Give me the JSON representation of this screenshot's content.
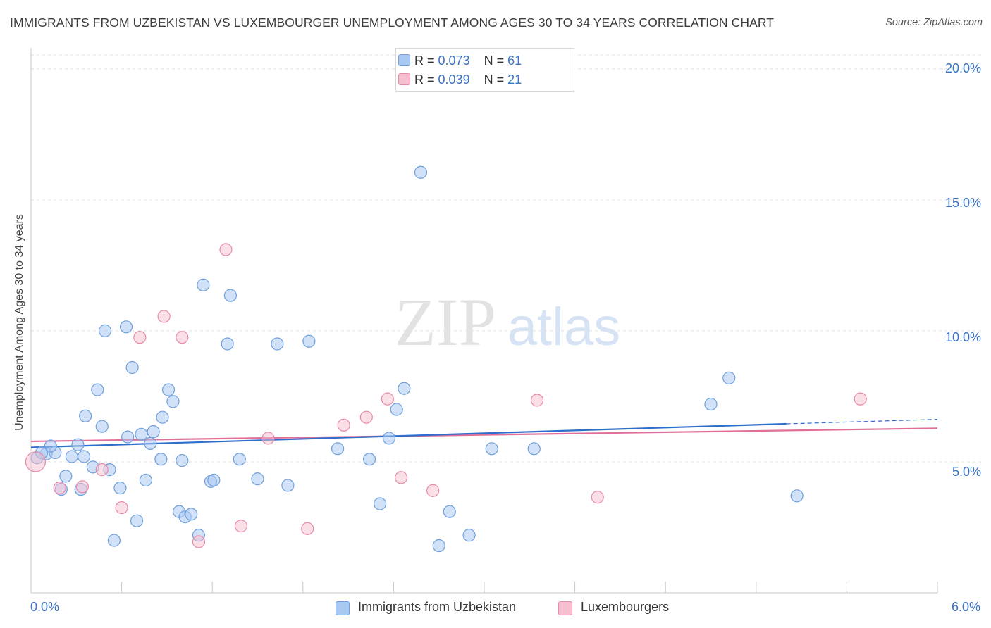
{
  "header": {
    "title": "IMMIGRANTS FROM UZBEKISTAN VS LUXEMBOURGER UNEMPLOYMENT AMONG AGES 30 TO 34 YEARS CORRELATION CHART",
    "source": "Source: ZipAtlas.com"
  },
  "watermark": {
    "zip": "ZIP",
    "atlas": "atlas"
  },
  "legend_top": {
    "rows": [
      {
        "r_label": "R =",
        "r_value": "0.073",
        "n_label": "N =",
        "n_value": "61"
      },
      {
        "r_label": "R =",
        "r_value": "0.039",
        "n_label": "N =",
        "n_value": "21"
      }
    ]
  },
  "legend_bottom": {
    "uzbekistan": "Immigrants from Uzbekistan",
    "luxembourgers": "Luxembourgers"
  },
  "axis_labels": {
    "x_min": "0.0%",
    "x_max": "6.0%",
    "y_ticks": [
      "20.0%",
      "15.0%",
      "10.0%",
      "5.0%"
    ]
  },
  "colors": {
    "blue_fill": "#a9c9f2",
    "blue_stroke": "#6f9fdc",
    "blue_line": "#2f6fcc",
    "pink_fill": "#f6bfd0",
    "pink_stroke": "#e88aa8",
    "pink_line": "#e0709a",
    "tick_text": "#3a73c6",
    "grid": "#e2e2e2"
  },
  "chart_data": {
    "type": "scatter",
    "title": "IMMIGRANTS FROM UZBEKISTAN VS LUXEMBOURGER UNEMPLOYMENT AMONG AGES 30 TO 34 YEARS CORRELATION CHART",
    "xlabel": "",
    "ylabel": "Unemployment Among Ages 30 to 34 years",
    "xlim": [
      0,
      6
    ],
    "ylim": [
      0,
      20.8
    ],
    "y_gridlines": [
      5,
      10,
      15,
      20
    ],
    "legend_placement": "top-center",
    "series": [
      {
        "name": "Immigrants from Uzbekistan",
        "R": 0.073,
        "N": 61,
        "trend": {
          "x": [
            0,
            5.0
          ],
          "y": [
            5.55,
            6.45
          ],
          "dashed_to": [
            6.0,
            6.62
          ]
        },
        "points": [
          [
            0.04,
            5.15
          ],
          [
            0.1,
            5.3
          ],
          [
            0.16,
            5.35
          ],
          [
            0.13,
            5.6
          ],
          [
            0.2,
            3.95
          ],
          [
            0.23,
            4.45
          ],
          [
            0.27,
            5.2
          ],
          [
            0.31,
            5.65
          ],
          [
            0.33,
            3.95
          ],
          [
            0.35,
            5.2
          ],
          [
            0.36,
            6.75
          ],
          [
            0.41,
            4.8
          ],
          [
            0.44,
            7.75
          ],
          [
            0.47,
            6.35
          ],
          [
            0.49,
            10.0
          ],
          [
            0.52,
            4.7
          ],
          [
            0.55,
            2.0
          ],
          [
            0.59,
            4.0
          ],
          [
            0.63,
            10.15
          ],
          [
            0.64,
            5.95
          ],
          [
            0.67,
            8.6
          ],
          [
            0.7,
            2.75
          ],
          [
            0.73,
            6.05
          ],
          [
            0.76,
            4.3
          ],
          [
            0.79,
            5.7
          ],
          [
            0.81,
            6.15
          ],
          [
            0.86,
            5.1
          ],
          [
            0.87,
            6.7
          ],
          [
            0.91,
            7.75
          ],
          [
            0.94,
            7.3
          ],
          [
            0.98,
            3.1
          ],
          [
            1.0,
            5.05
          ],
          [
            1.02,
            2.9
          ],
          [
            1.06,
            3.0
          ],
          [
            1.11,
            2.2
          ],
          [
            1.14,
            11.75
          ],
          [
            1.19,
            4.25
          ],
          [
            1.21,
            4.3
          ],
          [
            1.3,
            9.5
          ],
          [
            1.32,
            11.35
          ],
          [
            1.38,
            5.1
          ],
          [
            1.5,
            4.35
          ],
          [
            1.63,
            9.5
          ],
          [
            1.7,
            4.1
          ],
          [
            1.84,
            9.6
          ],
          [
            2.03,
            5.5
          ],
          [
            2.24,
            5.1
          ],
          [
            2.31,
            3.4
          ],
          [
            2.37,
            5.9
          ],
          [
            2.42,
            7.0
          ],
          [
            2.47,
            7.8
          ],
          [
            2.58,
            16.05
          ],
          [
            2.7,
            1.8
          ],
          [
            2.9,
            2.2
          ],
          [
            2.77,
            3.1
          ],
          [
            3.05,
            5.5
          ],
          [
            3.33,
            5.5
          ],
          [
            4.5,
            7.2
          ],
          [
            4.62,
            8.2
          ],
          [
            5.07,
            3.7
          ],
          [
            0.07,
            5.35
          ]
        ]
      },
      {
        "name": "Luxembourgers",
        "R": 0.039,
        "N": 21,
        "trend": {
          "x": [
            0,
            6.0
          ],
          "y": [
            5.78,
            6.28
          ]
        },
        "points": [
          [
            0.03,
            5.0
          ],
          [
            0.19,
            4.0
          ],
          [
            0.34,
            4.05
          ],
          [
            0.47,
            4.7
          ],
          [
            0.6,
            3.25
          ],
          [
            0.72,
            9.75
          ],
          [
            0.88,
            10.55
          ],
          [
            1.0,
            9.75
          ],
          [
            1.11,
            1.95
          ],
          [
            1.29,
            13.1
          ],
          [
            1.39,
            2.55
          ],
          [
            1.57,
            5.9
          ],
          [
            1.83,
            2.45
          ],
          [
            2.07,
            6.4
          ],
          [
            2.22,
            6.7
          ],
          [
            2.36,
            7.4
          ],
          [
            2.45,
            4.4
          ],
          [
            2.66,
            3.9
          ],
          [
            3.35,
            7.35
          ],
          [
            3.75,
            3.65
          ],
          [
            5.49,
            7.4
          ]
        ]
      }
    ]
  }
}
